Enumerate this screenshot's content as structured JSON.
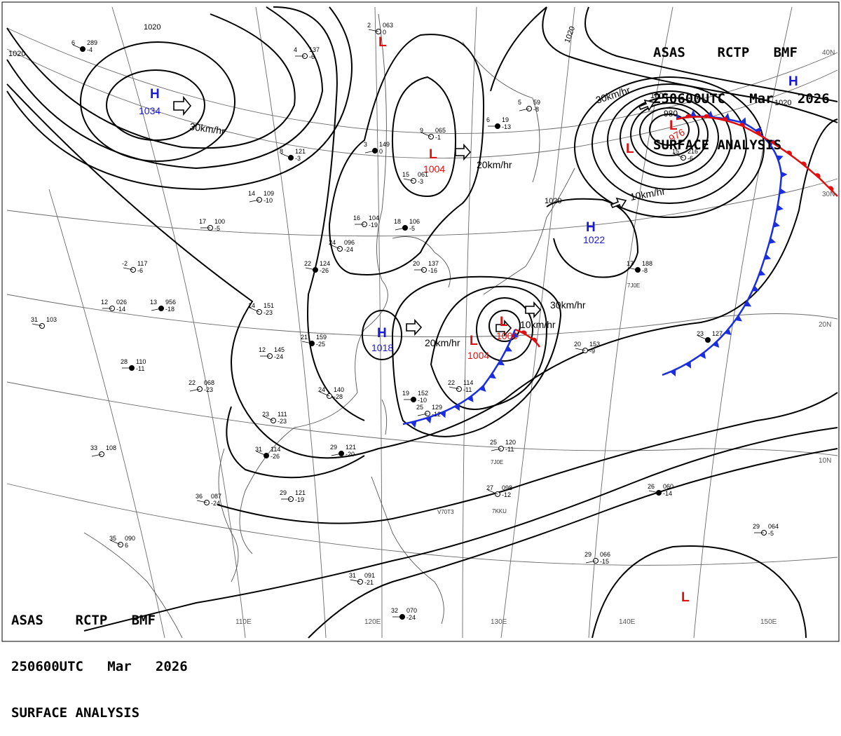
{
  "header": {
    "line1": "ASAS    RCTP   BMF",
    "line2": "250600UTC   Mar   2026",
    "line3": "SURFACE ANALYSIS"
  },
  "longitudes": [
    "110E",
    "120E",
    "130E",
    "140E",
    "150E"
  ],
  "latitudes": [
    "40N",
    "30N",
    "20N",
    "10N"
  ],
  "pressure_centers": [
    {
      "type": "H",
      "value": "1034"
    },
    {
      "type": "H",
      "value": "1018"
    },
    {
      "type": "H",
      "value": "1022"
    },
    {
      "type": "H",
      "value": ""
    },
    {
      "type": "L",
      "value": "1004"
    },
    {
      "type": "L",
      "value": "1004"
    },
    {
      "type": "L",
      "value": "1000"
    },
    {
      "type": "L",
      "value": "980"
    },
    {
      "type": "L",
      "value": "976"
    },
    {
      "type": "L",
      "value": ""
    },
    {
      "type": "L",
      "value": ""
    },
    {
      "type": "L",
      "value": ""
    }
  ],
  "isobar_labels": [
    "1020",
    "1020",
    "1020",
    "1020",
    "1020",
    "1000"
  ],
  "motion_labels": [
    "30km/hr",
    "20km/hr",
    "20km/hr",
    "10km/hr",
    "10km/hr",
    "30km/hr",
    "30km/hr"
  ],
  "stations": [
    {
      "id": "s1",
      "t": "6",
      "p": "289",
      "d": "-4"
    },
    {
      "id": "s2",
      "t": "2",
      "p": "063",
      "d": "0"
    },
    {
      "id": "s3",
      "t": "4",
      "p": "137",
      "d": "-6"
    },
    {
      "id": "s4",
      "t": "3",
      "p": "149",
      "d": "0"
    },
    {
      "id": "s5",
      "t": "9",
      "p": "065",
      "d": "-1"
    },
    {
      "id": "s6",
      "t": "15",
      "p": "061",
      "d": "-3"
    },
    {
      "id": "s7",
      "t": "6",
      "p": "19",
      "d": "-13"
    },
    {
      "id": "s8",
      "t": "5",
      "p": "59",
      "d": "-8"
    },
    {
      "id": "s9",
      "t": "15",
      "p": "216",
      "d": "-6"
    },
    {
      "id": "s10",
      "t": "17",
      "p": "188",
      "d": "-8"
    },
    {
      "id": "s11",
      "t": "17",
      "p": "100",
      "d": "-5"
    },
    {
      "id": "s12",
      "t": "14",
      "p": "109",
      "d": "-10"
    },
    {
      "id": "s13",
      "t": "8",
      "p": "121",
      "d": "-3"
    },
    {
      "id": "s14",
      "t": "-2",
      "p": "117",
      "d": "-6"
    },
    {
      "id": "s15",
      "t": "12",
      "p": "026",
      "d": "-14"
    },
    {
      "id": "s16",
      "t": "13",
      "p": "956",
      "d": "-18"
    },
    {
      "id": "s17",
      "t": "14",
      "p": "151",
      "d": "-23"
    },
    {
      "id": "s18",
      "t": "31",
      "p": "103",
      "d": ""
    },
    {
      "id": "s19",
      "t": "28",
      "p": "110",
      "d": "-11"
    },
    {
      "id": "s20",
      "t": "22",
      "p": "068",
      "d": "-23"
    },
    {
      "id": "s21",
      "t": "24",
      "p": "140",
      "d": "-28"
    },
    {
      "id": "s22",
      "t": "21",
      "p": "159",
      "d": "-25"
    },
    {
      "id": "s23",
      "t": "12",
      "p": "145",
      "d": "-24"
    },
    {
      "id": "s24",
      "t": "33",
      "p": "108",
      "d": ""
    },
    {
      "id": "s25",
      "t": "31",
      "p": "114",
      "d": "-26"
    },
    {
      "id": "s26",
      "t": "36",
      "p": "087",
      "d": "-24"
    },
    {
      "id": "s27",
      "t": "29",
      "p": "121",
      "d": "-19"
    },
    {
      "id": "s28",
      "t": "29",
      "p": "121",
      "d": "-20"
    },
    {
      "id": "s29",
      "t": "35",
      "p": "090",
      "d": "6"
    },
    {
      "id": "s30",
      "t": "31",
      "p": "091",
      "d": "-21"
    },
    {
      "id": "s31",
      "t": "32",
      "p": "070",
      "d": "-24"
    },
    {
      "id": "s32",
      "t": "25",
      "p": "120",
      "d": "-11"
    },
    {
      "id": "s33",
      "t": "27",
      "p": "098",
      "d": "-12"
    },
    {
      "id": "s34",
      "t": "26",
      "p": "060",
      "d": "-14"
    },
    {
      "id": "s35",
      "t": "29",
      "p": "064",
      "d": "-5"
    },
    {
      "id": "s36",
      "t": "29",
      "p": "066",
      "d": "-15"
    },
    {
      "id": "s37",
      "t": "23",
      "p": "127",
      "d": ""
    },
    {
      "id": "s38",
      "t": "20",
      "p": "153",
      "d": "-9"
    },
    {
      "id": "s39",
      "t": "16",
      "p": "104",
      "d": "-19"
    },
    {
      "id": "s40",
      "t": "18",
      "p": "106",
      "d": "-5"
    },
    {
      "id": "s41",
      "t": "24",
      "p": "096",
      "d": "-24"
    },
    {
      "id": "s42",
      "t": "22",
      "p": "114",
      "d": "-11"
    },
    {
      "id": "s43",
      "t": "19",
      "p": "152",
      "d": "-10"
    },
    {
      "id": "s44",
      "t": "25",
      "p": "129",
      "d": "-12"
    },
    {
      "id": "s45",
      "t": "23",
      "p": "111",
      "d": "-23"
    },
    {
      "id": "s46",
      "t": "22",
      "p": "124",
      "d": "-26"
    },
    {
      "id": "s47",
      "t": "20",
      "p": "137",
      "d": "-16"
    }
  ],
  "station_codes": [
    "7J0E",
    "7J0E",
    "V70T3",
    "7KKU"
  ],
  "colors": {
    "high": "#1a1ad6",
    "low": "#e01010",
    "cold_front": "#1a2ee0",
    "warm_front": "#e01010",
    "isobar": "#000000",
    "grid": "#6a6a6a",
    "coast": "#555555"
  }
}
